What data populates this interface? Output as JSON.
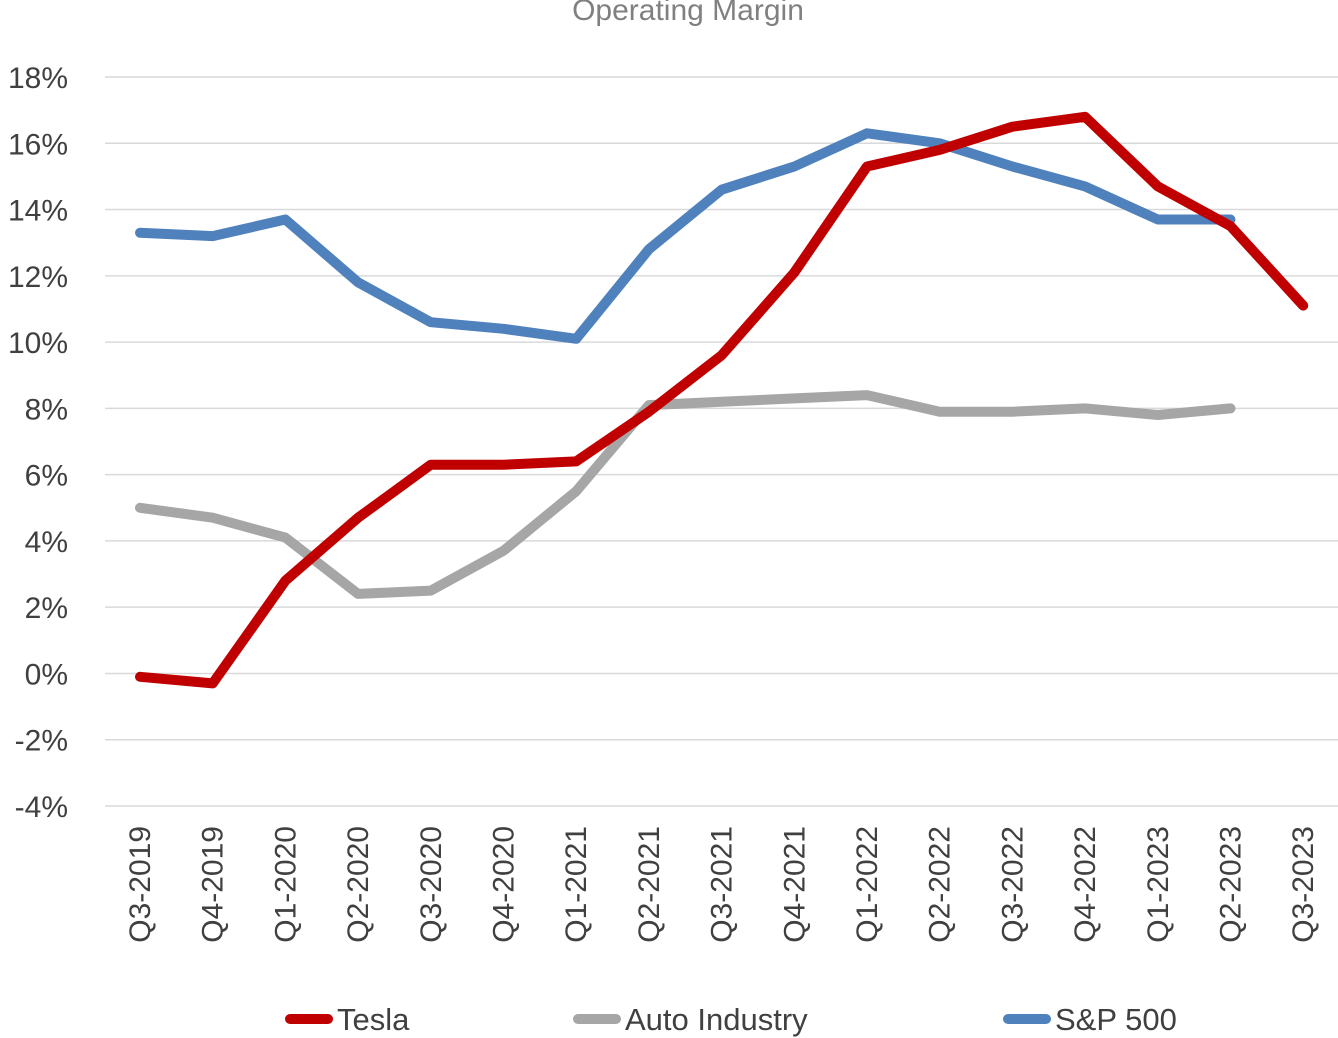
{
  "chart_data": {
    "type": "line",
    "title": "Operating Margin",
    "xlabel": "",
    "ylabel": "",
    "ylim": [
      -4,
      18
    ],
    "ytick_step": 2,
    "ytick_suffix": "%",
    "grid": true,
    "legend_position": "bottom",
    "categories": [
      "Q3-2019",
      "Q4-2019",
      "Q1-2020",
      "Q2-2020",
      "Q3-2020",
      "Q4-2020",
      "Q1-2021",
      "Q2-2021",
      "Q3-2021",
      "Q4-2021",
      "Q1-2022",
      "Q2-2022",
      "Q3-2022",
      "Q4-2022",
      "Q1-2023",
      "Q2-2023",
      "Q3-2023"
    ],
    "series": [
      {
        "name": "Tesla",
        "color": "#c00000",
        "values": [
          -0.1,
          -0.3,
          2.8,
          4.7,
          6.3,
          6.3,
          6.4,
          7.9,
          9.6,
          12.1,
          15.3,
          15.8,
          16.5,
          16.8,
          14.7,
          13.5,
          11.1
        ]
      },
      {
        "name": "Auto Industry",
        "color": "#a6a6a6",
        "values": [
          5.0,
          4.7,
          4.1,
          2.4,
          2.5,
          3.7,
          5.5,
          8.1,
          8.2,
          8.3,
          8.4,
          7.9,
          7.9,
          8.0,
          7.8,
          8.0,
          null
        ]
      },
      {
        "name": "S&P 500",
        "color": "#4f81bd",
        "values": [
          13.3,
          13.2,
          13.7,
          11.8,
          10.6,
          10.4,
          10.1,
          12.8,
          14.6,
          15.3,
          16.3,
          16.0,
          15.3,
          14.7,
          13.7,
          13.7,
          null
        ]
      }
    ]
  }
}
